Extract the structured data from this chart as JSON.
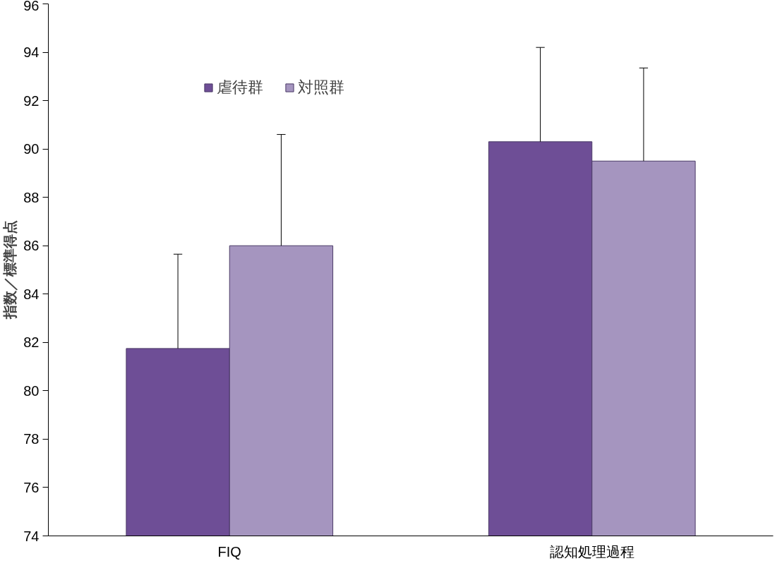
{
  "chart_data": {
    "type": "bar",
    "ylabel": "指数／標準得点",
    "categories": [
      "FIQ",
      "認知処理過程"
    ],
    "series": [
      {
        "name": "虐待群",
        "color": "#6e4e96",
        "values": [
          81.75,
          90.3
        ],
        "errors": [
          [
            81.75,
            85.65
          ],
          [
            90.3,
            94.2
          ]
        ]
      },
      {
        "name": "対照群",
        "color": "#a595bf",
        "values": [
          86.0,
          89.5
        ],
        "errors": [
          [
            86.0,
            90.6
          ],
          [
            89.5,
            93.35
          ]
        ]
      }
    ],
    "ylim": [
      74,
      96
    ],
    "yticks": [
      74,
      76,
      78,
      80,
      82,
      84,
      86,
      88,
      90,
      92,
      94,
      96
    ],
    "grid": false,
    "legend": "top"
  }
}
